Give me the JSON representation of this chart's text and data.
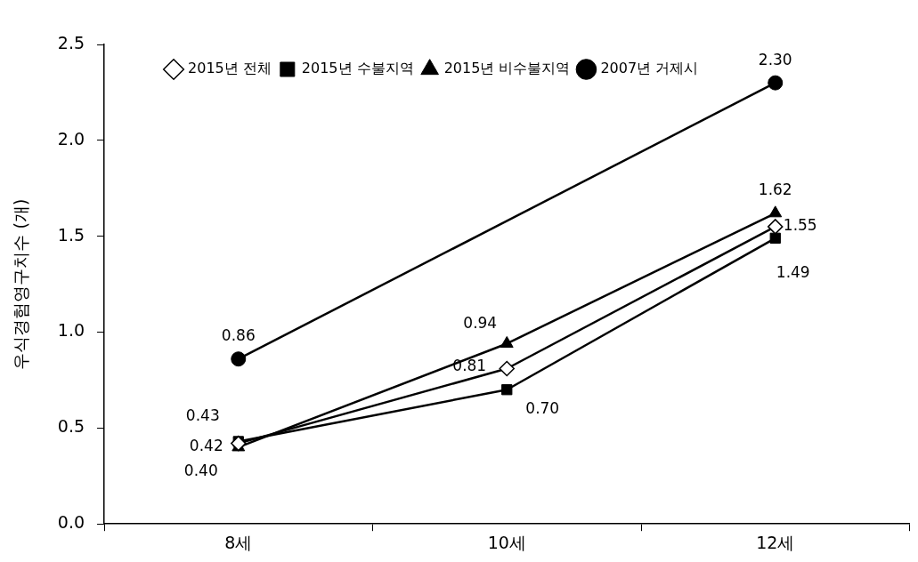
{
  "chart_data": {
    "type": "line",
    "ylabel": "우식경험영구치수 (개)",
    "categories": [
      "8세",
      "10세",
      "12세"
    ],
    "series": [
      {
        "name": "2015년 전체",
        "color": "#000000",
        "marker": "diamond",
        "values": [
          0.42,
          0.81,
          1.55
        ],
        "value_labels": [
          "0.42",
          "0.81",
          "1.55"
        ]
      },
      {
        "name": "2015년 수불지역",
        "color": "#000000",
        "marker": "square",
        "values": [
          0.43,
          0.7,
          1.49
        ],
        "value_labels": [
          "0.43",
          "0.70",
          "1.49"
        ]
      },
      {
        "name": "2015년 비수불지역",
        "color": "#000000",
        "marker": "triangle",
        "values": [
          0.4,
          0.94,
          1.62
        ],
        "value_labels": [
          "0.40",
          "0.94",
          "1.62"
        ]
      },
      {
        "name": "2007년 거제시",
        "color": "#000000",
        "marker": "circle",
        "values": [
          0.86,
          null,
          2.3
        ],
        "value_labels": [
          "0.86",
          null,
          "2.30"
        ]
      }
    ],
    "ylim": [
      0,
      2.5
    ],
    "yticks": [
      {
        "value": 0,
        "label": "0.0"
      },
      {
        "value": 0.5,
        "label": "0.5"
      },
      {
        "value": 1,
        "label": "1.0"
      },
      {
        "value": 1.5,
        "label": "1.5"
      },
      {
        "value": 2,
        "label": "2.0"
      },
      {
        "value": 2.5,
        "label": "2.5"
      }
    ],
    "grid": false,
    "legend": "top left",
    "line_style": "solid"
  }
}
